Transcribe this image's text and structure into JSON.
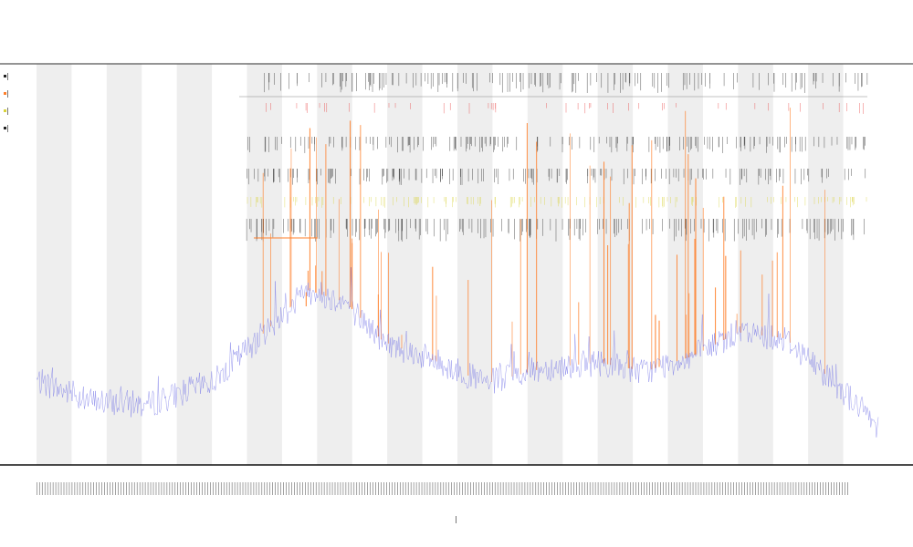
{
  "title_block": {
    "line1": "",
    "line2": "",
    "line3": ""
  },
  "colors": {
    "background": "#ffffff",
    "band_shade": "#eeeeee",
    "axis_line": "#555555",
    "main_series": "#6f6fe6",
    "spikes": "#ff7f2a",
    "red_ticks": "#e83b3b",
    "yellow_ticks": "#d8d23a",
    "dark_ticks": "#222222",
    "legend_frame": "#444444"
  },
  "chart_data": {
    "type": "line",
    "title": "",
    "xlabel": "",
    "ylabel": "",
    "n_points": 900,
    "shaded_bands": 12,
    "grid": false,
    "legend": {
      "placement": "top-left",
      "entries": [
        "",
        "",
        "",
        ""
      ]
    },
    "series": [
      {
        "name": "",
        "color": "#6f6fe6",
        "envelope_knots": [
          [
            0,
            0.22
          ],
          [
            60,
            0.15
          ],
          [
            120,
            0.14
          ],
          [
            190,
            0.22
          ],
          [
            250,
            0.4
          ],
          [
            290,
            0.52
          ],
          [
            330,
            0.48
          ],
          [
            370,
            0.35
          ],
          [
            430,
            0.28
          ],
          [
            480,
            0.21
          ],
          [
            540,
            0.26
          ],
          [
            600,
            0.28
          ],
          [
            650,
            0.25
          ],
          [
            700,
            0.3
          ],
          [
            750,
            0.38
          ],
          [
            800,
            0.36
          ],
          [
            850,
            0.22
          ],
          [
            899,
            0.07
          ]
        ]
      }
    ],
    "spike_count": 60,
    "note_on_values": ""
  }
}
